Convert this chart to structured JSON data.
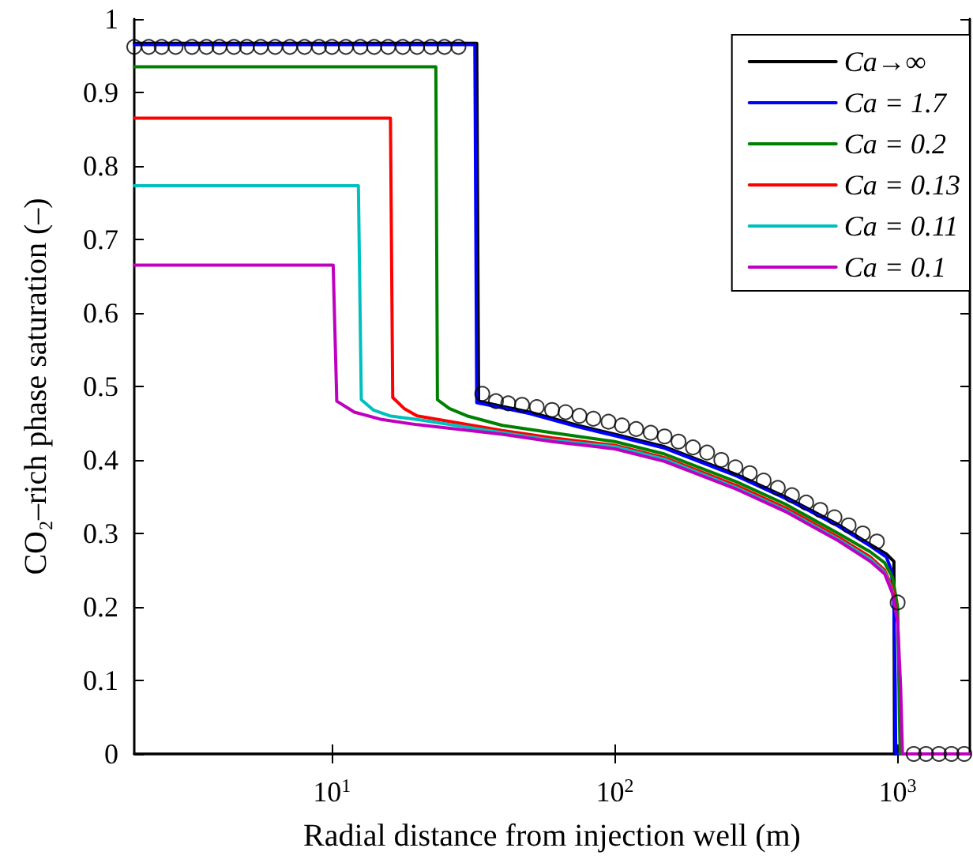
{
  "chart_data": {
    "type": "line",
    "xlabel": "Radial distance from injection well (m)",
    "ylabel": "CO₂–rich phase saturation (–)",
    "log": "x",
    "xlim": [
      2,
      1800
    ],
    "xticks": [
      {
        "value": 10,
        "label": "10$^{1}$"
      },
      {
        "value": 100,
        "label": "10$^{2}$"
      },
      {
        "value": 1000,
        "label": "10$^{3}$"
      }
    ],
    "ylim": [
      0,
      1
    ],
    "yticks": [
      0,
      0.1,
      0.2,
      0.3,
      0.4,
      0.5,
      0.6,
      0.7,
      0.8,
      0.9,
      1
    ],
    "grid": false,
    "legend": "top right",
    "line_style": "solid",
    "series": [
      {
        "type": "scatter",
        "marker": "circle",
        "color": "#000000",
        "x": [
          2.0,
          2.25,
          2.5,
          2.8,
          3.2,
          3.6,
          4.0,
          4.5,
          5.0,
          5.6,
          6.3,
          7.1,
          8.0,
          9.0,
          10,
          11.2,
          12.6,
          14.1,
          15.8,
          17.8,
          20,
          22.4,
          25,
          28,
          34,
          38,
          42,
          47,
          53,
          60,
          67,
          75,
          84,
          95,
          106,
          119,
          134,
          150,
          168,
          189,
          212,
          238,
          267,
          300,
          336,
          377,
          423,
          475,
          533,
          598,
          671,
          753,
          845,
          1000,
          1140,
          1260,
          1400,
          1550,
          1720
        ],
        "values": [
          0.962,
          0.962,
          0.962,
          0.962,
          0.962,
          0.962,
          0.962,
          0.962,
          0.962,
          0.962,
          0.962,
          0.962,
          0.962,
          0.962,
          0.962,
          0.962,
          0.962,
          0.962,
          0.962,
          0.962,
          0.962,
          0.962,
          0.962,
          0.962,
          0.49,
          0.48,
          0.477,
          0.475,
          0.472,
          0.468,
          0.465,
          0.46,
          0.456,
          0.452,
          0.447,
          0.442,
          0.437,
          0.432,
          0.425,
          0.417,
          0.41,
          0.4,
          0.39,
          0.382,
          0.372,
          0.362,
          0.352,
          0.342,
          0.332,
          0.322,
          0.311,
          0.3,
          0.289,
          0.206,
          0,
          0,
          0,
          0,
          0
        ]
      },
      {
        "name": "Ca→∞",
        "color": "#000000",
        "x": [
          2,
          32.5,
          33,
          40,
          50,
          74,
          100,
          150,
          270,
          400,
          617,
          800,
          912,
          970,
          975,
          1800
        ],
        "values": [
          0.967,
          0.967,
          0.48,
          0.473,
          0.465,
          0.447,
          0.435,
          0.418,
          0.38,
          0.35,
          0.312,
          0.285,
          0.272,
          0.262,
          0,
          0
        ]
      },
      {
        "name": "Ca = 1.7",
        "color": "#0000ff",
        "x": [
          2,
          32,
          32.5,
          40,
          50,
          74,
          100,
          150,
          270,
          400,
          617,
          800,
          912,
          950,
          970,
          980,
          985,
          1800
        ],
        "values": [
          0.965,
          0.965,
          0.478,
          0.471,
          0.463,
          0.445,
          0.433,
          0.416,
          0.378,
          0.348,
          0.31,
          0.283,
          0.268,
          0.25,
          0.2,
          0.1,
          0,
          0
        ]
      },
      {
        "name": "Ca = 0.2",
        "color": "#008000",
        "x": [
          2,
          23.3,
          23.6,
          26,
          30,
          40,
          60,
          100,
          150,
          270,
          400,
          617,
          800,
          900,
          960,
          1000,
          1010,
          1020,
          1800
        ],
        "values": [
          0.935,
          0.935,
          0.482,
          0.47,
          0.46,
          0.447,
          0.437,
          0.425,
          0.408,
          0.37,
          0.34,
          0.3,
          0.275,
          0.26,
          0.24,
          0.2,
          0.1,
          0,
          0
        ]
      },
      {
        "name": "Ca = 0.13",
        "color": "#ff0000",
        "x": [
          2,
          16.1,
          16.4,
          18,
          20,
          40,
          60,
          100,
          150,
          270,
          400,
          617,
          800,
          900,
          960,
          1000
        ],
        "values": [
          0.865,
          0.865,
          0.485,
          0.47,
          0.46,
          0.44,
          0.43,
          0.42,
          0.403,
          0.365,
          0.335,
          0.295,
          0.268,
          0.25,
          0.225,
          0.18
        ]
      },
      {
        "name": "Ca = 0.11",
        "color": "#00bfbf",
        "x": [
          2,
          12.4,
          12.7,
          14,
          16,
          20,
          40,
          60,
          100,
          150,
          270,
          400,
          617,
          800,
          900,
          960
        ],
        "values": [
          0.773,
          0.773,
          0.482,
          0.468,
          0.46,
          0.455,
          0.437,
          0.427,
          0.418,
          0.401,
          0.362,
          0.332,
          0.292,
          0.265,
          0.247,
          0.22
        ]
      },
      {
        "name": "Ca = 0.1",
        "color": "#bf00bf",
        "x": [
          2,
          10.1,
          10.4,
          12,
          15,
          20,
          40,
          60,
          100,
          150,
          270,
          400,
          617,
          800,
          900,
          960,
          1000,
          1025,
          1040,
          1800
        ],
        "values": [
          0.665,
          0.665,
          0.48,
          0.465,
          0.455,
          0.448,
          0.435,
          0.425,
          0.415,
          0.398,
          0.36,
          0.33,
          0.29,
          0.262,
          0.245,
          0.218,
          0.18,
          0.09,
          0,
          0
        ]
      }
    ]
  }
}
